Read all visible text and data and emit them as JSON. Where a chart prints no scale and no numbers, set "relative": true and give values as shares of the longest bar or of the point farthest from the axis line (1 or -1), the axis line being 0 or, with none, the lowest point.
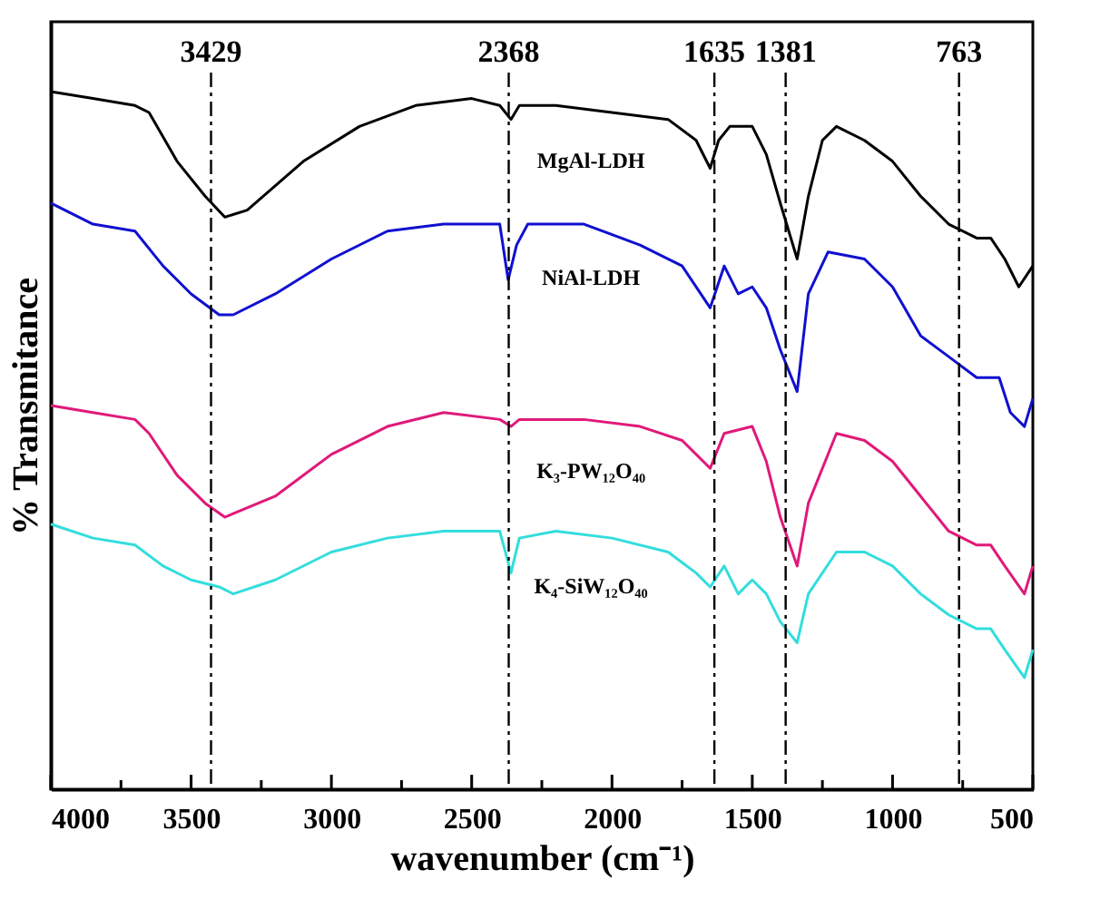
{
  "chart_data": {
    "type": "line",
    "relative": true,
    "xlabel": "wavenumber (cm⁻¹)",
    "ylabel": "% Transmitance",
    "xlim": [
      4000,
      500
    ],
    "xticks": [
      4000,
      {
        "value": 3750,
        "label": null
      },
      3500,
      {
        "value": 3250,
        "label": null
      },
      3000,
      {
        "value": 2750,
        "label": null
      },
      2500,
      {
        "value": 2250,
        "label": null
      },
      2000,
      {
        "value": 1750,
        "label": null
      },
      1500,
      {
        "value": 1250,
        "label": null
      },
      1000,
      {
        "value": 750,
        "label": null
      },
      500
    ],
    "grid": false,
    "marker": "none",
    "line_style": "solid",
    "series": [
      {
        "name": "MgAl-LDH",
        "color": "#000000",
        "x": [
          4000,
          3850,
          3700,
          3650,
          3550,
          3450,
          3380,
          3300,
          3100,
          2900,
          2700,
          2500,
          2400,
          2360,
          2330,
          2200,
          2000,
          1800,
          1700,
          1650,
          1620,
          1580,
          1500,
          1450,
          1400,
          1340,
          1300,
          1250,
          1200,
          1100,
          1000,
          900,
          800,
          700,
          650,
          600,
          550,
          500
        ],
        "values": [
          1.0,
          0.99,
          0.98,
          0.97,
          0.9,
          0.85,
          0.82,
          0.83,
          0.9,
          0.95,
          0.98,
          0.99,
          0.98,
          0.96,
          0.98,
          0.98,
          0.97,
          0.96,
          0.93,
          0.89,
          0.93,
          0.95,
          0.95,
          0.91,
          0.84,
          0.76,
          0.85,
          0.93,
          0.95,
          0.93,
          0.9,
          0.85,
          0.81,
          0.79,
          0.79,
          0.76,
          0.72,
          0.75
        ]
      },
      {
        "name": "NiAl-LDH",
        "color": "#1010d0",
        "x": [
          4000,
          3850,
          3700,
          3600,
          3500,
          3400,
          3350,
          3200,
          3000,
          2800,
          2600,
          2400,
          2370,
          2340,
          2300,
          2100,
          1900,
          1750,
          1650,
          1600,
          1550,
          1500,
          1450,
          1400,
          1340,
          1300,
          1230,
          1100,
          1000,
          900,
          800,
          700,
          620,
          580,
          530,
          500
        ],
        "values": [
          0.84,
          0.81,
          0.8,
          0.75,
          0.71,
          0.68,
          0.68,
          0.71,
          0.76,
          0.8,
          0.81,
          0.81,
          0.73,
          0.78,
          0.81,
          0.81,
          0.78,
          0.75,
          0.69,
          0.75,
          0.71,
          0.72,
          0.69,
          0.63,
          0.57,
          0.71,
          0.77,
          0.76,
          0.72,
          0.65,
          0.62,
          0.59,
          0.59,
          0.54,
          0.52,
          0.56
        ]
      },
      {
        "name": "K₃-PW₁₂O₄₀",
        "color": "#e0197a",
        "x": [
          4000,
          3850,
          3700,
          3650,
          3550,
          3450,
          3380,
          3200,
          3000,
          2800,
          2600,
          2400,
          2360,
          2330,
          2100,
          1900,
          1750,
          1650,
          1600,
          1500,
          1450,
          1400,
          1340,
          1300,
          1200,
          1100,
          1000,
          900,
          800,
          700,
          650,
          600,
          530,
          500
        ],
        "values": [
          0.55,
          0.54,
          0.53,
          0.51,
          0.45,
          0.41,
          0.39,
          0.42,
          0.48,
          0.52,
          0.54,
          0.53,
          0.52,
          0.53,
          0.53,
          0.52,
          0.5,
          0.46,
          0.51,
          0.52,
          0.47,
          0.39,
          0.32,
          0.41,
          0.51,
          0.5,
          0.47,
          0.42,
          0.37,
          0.35,
          0.35,
          0.32,
          0.28,
          0.32
        ]
      },
      {
        "name": "K₄-SiW₁₂O₄₀",
        "color": "#33dddd",
        "x": [
          4000,
          3850,
          3700,
          3600,
          3500,
          3400,
          3350,
          3200,
          3000,
          2800,
          2600,
          2400,
          2360,
          2330,
          2200,
          2000,
          1800,
          1700,
          1650,
          1600,
          1550,
          1500,
          1450,
          1400,
          1340,
          1300,
          1200,
          1100,
          1000,
          900,
          800,
          700,
          650,
          600,
          530,
          500
        ],
        "values": [
          0.38,
          0.36,
          0.35,
          0.32,
          0.3,
          0.29,
          0.28,
          0.3,
          0.34,
          0.36,
          0.37,
          0.37,
          0.31,
          0.36,
          0.37,
          0.36,
          0.34,
          0.31,
          0.29,
          0.32,
          0.28,
          0.3,
          0.28,
          0.24,
          0.21,
          0.28,
          0.34,
          0.34,
          0.32,
          0.28,
          0.25,
          0.23,
          0.23,
          0.2,
          0.16,
          0.2
        ]
      }
    ],
    "ref_lines": [
      {
        "axis": "x",
        "value": 3429,
        "label": "3429",
        "color": "#000000",
        "line_style": "dashed"
      },
      {
        "axis": "x",
        "value": 2368,
        "label": "2368",
        "color": "#000000",
        "line_style": "dashed"
      },
      {
        "axis": "x",
        "value": 1635,
        "label": "1635",
        "color": "#000000",
        "line_style": "dashed"
      },
      {
        "axis": "x",
        "value": 1381,
        "label": "1381",
        "color": "#000000",
        "line_style": "dashed"
      },
      {
        "axis": "x",
        "value": 763,
        "label": "763",
        "color": "#000000",
        "line_style": "dashed"
      }
    ]
  }
}
